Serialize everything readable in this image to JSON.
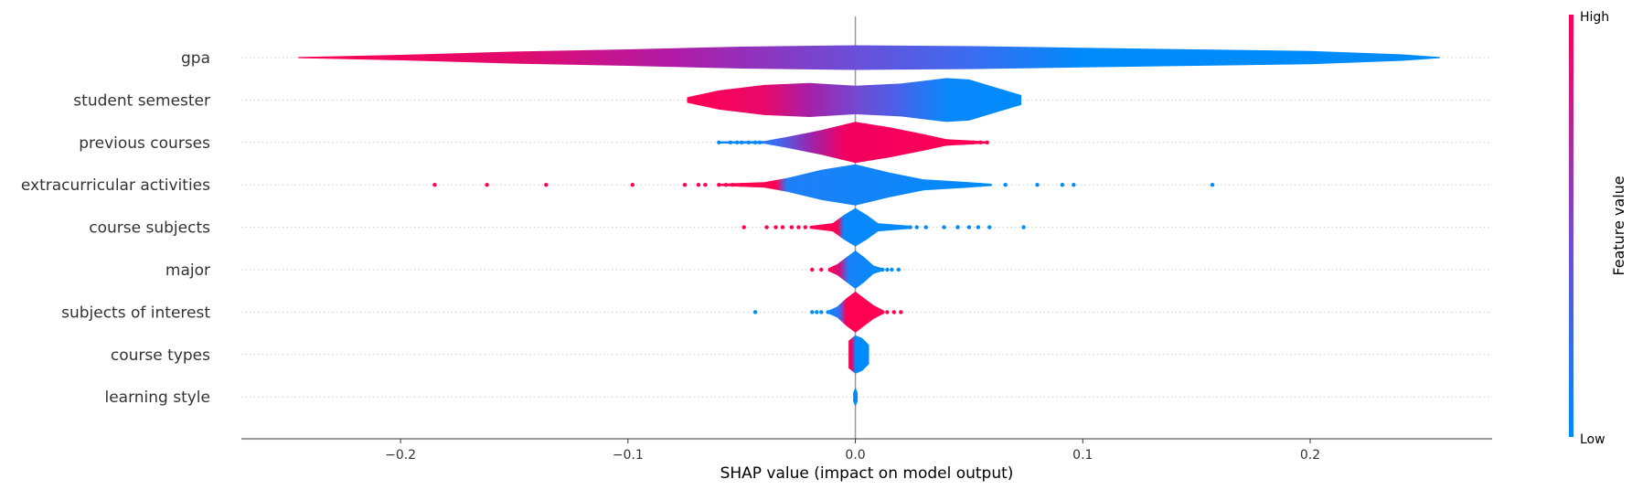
{
  "chart_data": {
    "type": "violin",
    "title": "",
    "xlabel": "SHAP value (impact on model output)",
    "xlim": [
      -0.27,
      0.28
    ],
    "xticks": [
      -0.2,
      -0.1,
      0.0,
      0.1,
      0.2
    ],
    "xtick_labels": [
      "−0.2",
      "−0.1",
      "0.0",
      "0.1",
      "0.2"
    ],
    "colorbar": {
      "title": "Feature value",
      "high_label": "High",
      "low_label": "Low",
      "high_color": "#ff0052",
      "low_color": "#008bfb"
    },
    "features": [
      {
        "name": "gpa",
        "range": [
          -0.245,
          0.257
        ],
        "center_color": "#6a4fd8",
        "profile": [
          [
            -0.245,
            0.02
          ],
          [
            -0.2,
            0.1
          ],
          [
            -0.15,
            0.22
          ],
          [
            -0.1,
            0.3
          ],
          [
            -0.05,
            0.4
          ],
          [
            0.0,
            0.45
          ],
          [
            0.05,
            0.42
          ],
          [
            0.1,
            0.36
          ],
          [
            0.15,
            0.3
          ],
          [
            0.2,
            0.24
          ],
          [
            0.24,
            0.12
          ],
          [
            0.257,
            0.02
          ]
        ],
        "colors": [
          [
            -0.245,
            "#ff0052"
          ],
          [
            -0.15,
            "#e10a6c"
          ],
          [
            -0.08,
            "#b01ba6"
          ],
          [
            0.0,
            "#6a4fd8"
          ],
          [
            0.05,
            "#3c6cf0"
          ],
          [
            0.1,
            "#008bfb"
          ],
          [
            0.257,
            "#008bfb"
          ]
        ],
        "dots": []
      },
      {
        "name": "student semester",
        "range": [
          -0.074,
          0.073
        ],
        "center_color": "#7448d0",
        "profile": [
          [
            -0.074,
            0.1
          ],
          [
            -0.06,
            0.35
          ],
          [
            -0.04,
            0.55
          ],
          [
            -0.02,
            0.62
          ],
          [
            0.0,
            0.52
          ],
          [
            0.02,
            0.6
          ],
          [
            0.04,
            0.8
          ],
          [
            0.05,
            0.75
          ],
          [
            0.06,
            0.5
          ],
          [
            0.073,
            0.18
          ]
        ],
        "colors": [
          [
            -0.074,
            "#ff0052"
          ],
          [
            -0.04,
            "#e8086a"
          ],
          [
            -0.02,
            "#a520a8"
          ],
          [
            0.0,
            "#7448d0"
          ],
          [
            0.02,
            "#4563ea"
          ],
          [
            0.04,
            "#0a88fb"
          ],
          [
            0.073,
            "#008bfb"
          ]
        ],
        "dots": []
      },
      {
        "name": "previous courses",
        "range": [
          -0.06,
          0.058
        ],
        "center_color": "#ff0052",
        "profile": [
          [
            -0.06,
            0.04
          ],
          [
            -0.04,
            0.05
          ],
          [
            -0.03,
            0.2
          ],
          [
            -0.015,
            0.45
          ],
          [
            0.0,
            0.75
          ],
          [
            0.015,
            0.55
          ],
          [
            0.03,
            0.3
          ],
          [
            0.04,
            0.12
          ],
          [
            0.058,
            0.04
          ]
        ],
        "colors": [
          [
            -0.06,
            "#008bfb"
          ],
          [
            -0.035,
            "#3b6cf1"
          ],
          [
            -0.02,
            "#9a25ae"
          ],
          [
            -0.005,
            "#f00060"
          ],
          [
            0.058,
            "#ff0052"
          ]
        ],
        "dots": [
          [
            -0.06,
            "#008bfb"
          ],
          [
            -0.055,
            "#008bfb"
          ],
          [
            -0.052,
            "#008bfb"
          ],
          [
            -0.05,
            "#008bfb"
          ],
          [
            -0.047,
            "#008bfb"
          ],
          [
            -0.044,
            "#008bfb"
          ],
          [
            -0.042,
            "#008bfb"
          ],
          [
            0.038,
            "#ff0052"
          ],
          [
            0.041,
            "#ff0052"
          ],
          [
            0.044,
            "#ff0052"
          ],
          [
            0.046,
            "#ff0052"
          ],
          [
            0.049,
            "#ff0052"
          ],
          [
            0.052,
            "#ff0052"
          ],
          [
            0.055,
            "#ff0052"
          ],
          [
            0.058,
            "#ff0052"
          ]
        ]
      },
      {
        "name": "extracurricular activities",
        "range": [
          -0.185,
          0.157
        ],
        "center_color": "#008bfb",
        "profile": [
          [
            -0.06,
            0.04
          ],
          [
            -0.04,
            0.1
          ],
          [
            -0.03,
            0.25
          ],
          [
            -0.015,
            0.55
          ],
          [
            0.0,
            0.75
          ],
          [
            0.015,
            0.45
          ],
          [
            0.03,
            0.2
          ],
          [
            0.05,
            0.1
          ],
          [
            0.06,
            0.04
          ]
        ],
        "colors": [
          [
            -0.06,
            "#ff0052"
          ],
          [
            -0.035,
            "#ff0052"
          ],
          [
            -0.03,
            "#1f80f8"
          ],
          [
            0.06,
            "#008bfb"
          ]
        ],
        "dots": [
          [
            -0.185,
            "#ff0052"
          ],
          [
            -0.162,
            "#ff0052"
          ],
          [
            -0.136,
            "#ff0052"
          ],
          [
            -0.098,
            "#ff0052"
          ],
          [
            -0.075,
            "#ff0052"
          ],
          [
            -0.069,
            "#ff0052"
          ],
          [
            -0.066,
            "#ff0052"
          ],
          [
            -0.06,
            "#ff0052"
          ],
          [
            -0.057,
            "#ff0052"
          ],
          [
            -0.054,
            "#ff0052"
          ],
          [
            -0.05,
            "#ff0052"
          ],
          [
            -0.047,
            "#ff0052"
          ],
          [
            -0.043,
            "#ff0052"
          ],
          [
            0.03,
            "#008bfb"
          ],
          [
            0.035,
            "#008bfb"
          ],
          [
            0.04,
            "#008bfb"
          ],
          [
            0.045,
            "#008bfb"
          ],
          [
            0.05,
            "#008bfb"
          ],
          [
            0.055,
            "#008bfb"
          ],
          [
            0.066,
            "#008bfb"
          ],
          [
            0.08,
            "#008bfb"
          ],
          [
            0.091,
            "#008bfb"
          ],
          [
            0.096,
            "#008bfb"
          ],
          [
            0.157,
            "#008bfb"
          ]
        ]
      },
      {
        "name": "course subjects",
        "range": [
          -0.049,
          0.074
        ],
        "center_color": "#008bfb",
        "profile": [
          [
            -0.02,
            0.05
          ],
          [
            -0.01,
            0.15
          ],
          [
            -0.005,
            0.45
          ],
          [
            0.0,
            0.7
          ],
          [
            0.005,
            0.45
          ],
          [
            0.01,
            0.15
          ],
          [
            0.025,
            0.05
          ]
        ],
        "colors": [
          [
            -0.02,
            "#ff0052"
          ],
          [
            -0.008,
            "#ff0052"
          ],
          [
            -0.005,
            "#0a88fb"
          ],
          [
            0.025,
            "#008bfb"
          ]
        ],
        "dots": [
          [
            -0.049,
            "#ff0052"
          ],
          [
            -0.039,
            "#ff0052"
          ],
          [
            -0.035,
            "#ff0052"
          ],
          [
            -0.032,
            "#ff0052"
          ],
          [
            -0.028,
            "#ff0052"
          ],
          [
            -0.025,
            "#ff0052"
          ],
          [
            -0.022,
            "#ff0052"
          ],
          [
            0.018,
            "#008bfb"
          ],
          [
            0.021,
            "#008bfb"
          ],
          [
            0.024,
            "#008bfb"
          ],
          [
            0.027,
            "#008bfb"
          ],
          [
            0.031,
            "#008bfb"
          ],
          [
            0.039,
            "#008bfb"
          ],
          [
            0.045,
            "#008bfb"
          ],
          [
            0.05,
            "#008bfb"
          ],
          [
            0.054,
            "#008bfb"
          ],
          [
            0.059,
            "#008bfb"
          ],
          [
            0.074,
            "#008bfb"
          ]
        ]
      },
      {
        "name": "major",
        "range": [
          -0.019,
          0.019
        ],
        "center_color": "#008bfb",
        "profile": [
          [
            -0.012,
            0.05
          ],
          [
            -0.008,
            0.2
          ],
          [
            -0.004,
            0.45
          ],
          [
            0.0,
            0.7
          ],
          [
            0.004,
            0.45
          ],
          [
            0.008,
            0.15
          ],
          [
            0.012,
            0.05
          ]
        ],
        "colors": [
          [
            -0.012,
            "#ff0052"
          ],
          [
            -0.007,
            "#d30f7b"
          ],
          [
            -0.003,
            "#1982f9"
          ],
          [
            0.012,
            "#008bfb"
          ]
        ],
        "dots": [
          [
            -0.019,
            "#ff0052"
          ],
          [
            -0.015,
            "#ff0052"
          ],
          [
            0.012,
            "#008bfb"
          ],
          [
            0.014,
            "#008bfb"
          ],
          [
            0.016,
            "#008bfb"
          ],
          [
            0.019,
            "#008bfb"
          ]
        ]
      },
      {
        "name": "subjects of interest",
        "range": [
          -0.044,
          0.02
        ],
        "center_color": "#ff0052",
        "profile": [
          [
            -0.012,
            0.05
          ],
          [
            -0.008,
            0.2
          ],
          [
            -0.004,
            0.5
          ],
          [
            0.0,
            0.75
          ],
          [
            0.004,
            0.5
          ],
          [
            0.008,
            0.25
          ],
          [
            0.012,
            0.08
          ]
        ],
        "colors": [
          [
            -0.012,
            "#008bfb"
          ],
          [
            -0.007,
            "#3b6cf1"
          ],
          [
            -0.004,
            "#ff0052"
          ],
          [
            0.012,
            "#ff0052"
          ]
        ],
        "dots": [
          [
            -0.044,
            "#008bfb"
          ],
          [
            -0.019,
            "#008bfb"
          ],
          [
            -0.017,
            "#008bfb"
          ],
          [
            -0.015,
            "#008bfb"
          ],
          [
            -0.012,
            "#008bfb"
          ],
          [
            0.012,
            "#ff0052"
          ],
          [
            0.014,
            "#ff0052"
          ],
          [
            0.017,
            "#ff0052"
          ],
          [
            0.02,
            "#ff0052"
          ]
        ]
      },
      {
        "name": "course types",
        "range": [
          -0.003,
          0.006
        ],
        "center_color": "#008bfb",
        "profile": [
          [
            -0.003,
            0.5
          ],
          [
            0.0,
            0.7
          ],
          [
            0.003,
            0.6
          ],
          [
            0.006,
            0.35
          ]
        ],
        "colors": [
          [
            -0.003,
            "#ff0052"
          ],
          [
            -0.0015,
            "#e00a6c"
          ],
          [
            0.0,
            "#008bfb"
          ],
          [
            0.006,
            "#008bfb"
          ]
        ],
        "dots": []
      },
      {
        "name": "learning style",
        "range": [
          -0.001,
          0.001
        ],
        "center_color": "#008bfb",
        "profile": [
          [
            -0.001,
            0.15
          ],
          [
            0.0,
            0.35
          ],
          [
            0.001,
            0.15
          ]
        ],
        "colors": [
          [
            -0.001,
            "#008bfb"
          ],
          [
            0.001,
            "#008bfb"
          ]
        ],
        "dots": []
      }
    ]
  }
}
